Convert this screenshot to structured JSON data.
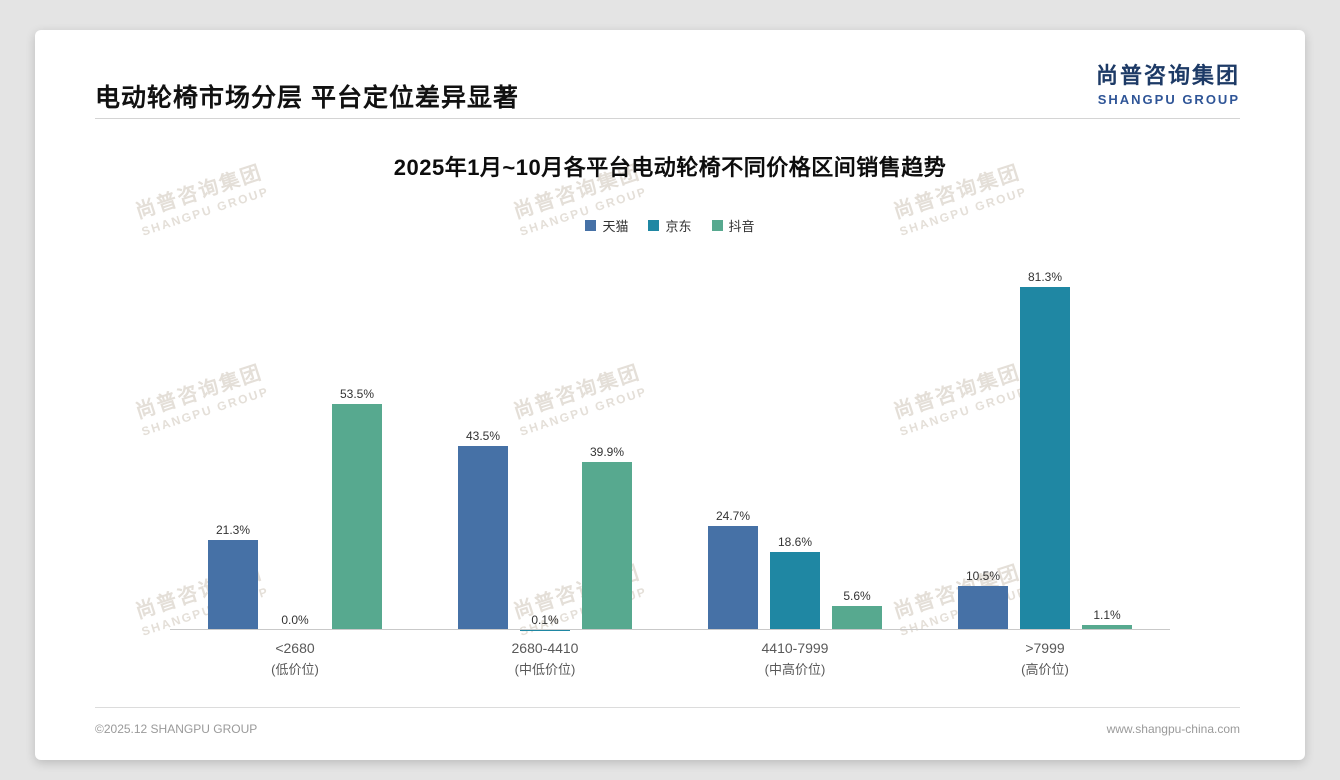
{
  "header": {
    "title": "电动轮椅市场分层 平台定位差异显著",
    "logo_cn": "尚普咨询集团",
    "logo_en": "SHANGPU GROUP"
  },
  "watermark": {
    "line1": "尚普咨询集团",
    "line2": "SHANGPU GROUP"
  },
  "chart_data": {
    "type": "bar",
    "title": "2025年1月~10月各平台电动轮椅不同价格区间销售趋势",
    "value_suffix": "%",
    "ylim": [
      0,
      100
    ],
    "grid": false,
    "legend_position": "top",
    "categories": [
      {
        "label": "<2680",
        "sub": "(低价位)"
      },
      {
        "label": "2680-4410",
        "sub": "(中低价位)"
      },
      {
        "label": "4410-7999",
        "sub": "(中高价位)"
      },
      {
        "label": ">7999",
        "sub": "(高价位)"
      }
    ],
    "series": [
      {
        "name": "天猫",
        "color": "#4671A6",
        "values": [
          21.3,
          43.5,
          24.7,
          10.5
        ]
      },
      {
        "name": "京东",
        "color": "#1F87A3",
        "values": [
          0.0,
          0.1,
          18.6,
          81.3
        ]
      },
      {
        "name": "抖音",
        "color": "#57A98F",
        "values": [
          53.5,
          39.9,
          5.6,
          1.1
        ]
      }
    ]
  },
  "footer": {
    "copyright": "©2025.12 SHANGPU GROUP",
    "website": "www.shangpu-china.com"
  }
}
